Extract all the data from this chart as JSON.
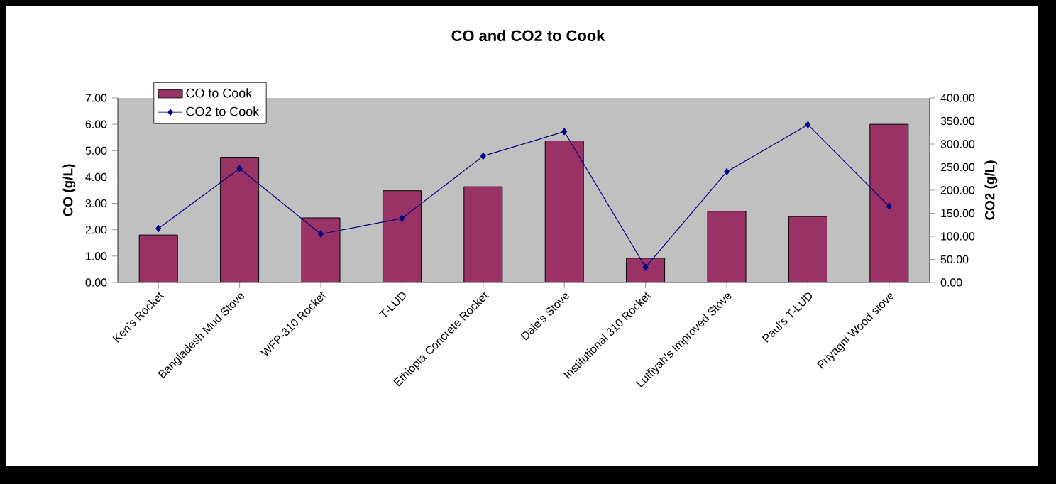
{
  "chart_data": {
    "type": "bar",
    "title": "CO and CO2 to Cook",
    "ylabel": "CO (g/L)",
    "y2label": "CO2 (g/L)",
    "categories": [
      "Ken's Rocket",
      "Bangladesh Mud Stove",
      "WFP-310 Rocket",
      "T-LUD",
      "Ethiopia Concrete Rocket",
      "Dale's Stove",
      "Institutional 310 Rocket",
      "Lutfiyah's Improved Stove",
      "Paul's T-LUD",
      "Priyagni Wood stove"
    ],
    "series": [
      {
        "name": "CO to Cook",
        "color": "#993366",
        "values": [
          1.8,
          4.75,
          2.45,
          3.48,
          3.63,
          5.37,
          0.92,
          2.7,
          2.5,
          6.0
        ]
      },
      {
        "name": "CO2 to Cook",
        "type": "line",
        "axis": "y2",
        "color": "#000080",
        "marker": "diamond",
        "values": [
          117,
          247,
          105,
          139,
          274,
          327,
          33,
          240,
          342,
          165
        ]
      }
    ],
    "ylim": [
      0,
      7
    ],
    "yticks": [
      {
        "value": 0,
        "label": "0.00"
      },
      {
        "value": 1,
        "label": "1.00"
      },
      {
        "value": 2,
        "label": "2.00"
      },
      {
        "value": 3,
        "label": "3.00"
      },
      {
        "value": 4,
        "label": "4.00"
      },
      {
        "value": 5,
        "label": "5.00"
      },
      {
        "value": 6,
        "label": "6.00"
      },
      {
        "value": 7,
        "label": "7.00"
      }
    ],
    "y2lim": [
      0,
      400
    ],
    "y2ticks": [
      {
        "value": 0,
        "label": "0.00"
      },
      {
        "value": 50,
        "label": "50.00"
      },
      {
        "value": 100,
        "label": "100.00"
      },
      {
        "value": 150,
        "label": "150.00"
      },
      {
        "value": 200,
        "label": "200.00"
      },
      {
        "value": 250,
        "label": "250.00"
      },
      {
        "value": 300,
        "label": "300.00"
      },
      {
        "value": 350,
        "label": "350.00"
      },
      {
        "value": 400,
        "label": "400.00"
      }
    ],
    "grid": false,
    "legend": "top left"
  }
}
